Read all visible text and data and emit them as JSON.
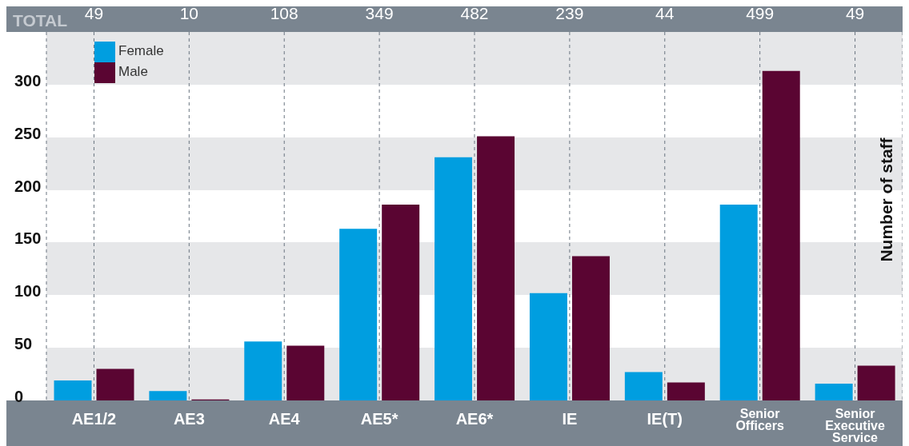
{
  "chart_data": {
    "type": "bar",
    "ylabel": "Number of staff",
    "categories": [
      "AE1/2",
      "AE3",
      "AE4",
      "AE5*",
      "AE6*",
      "IE",
      "IE(T)",
      "Senior Officers",
      "Senior Executive Service"
    ],
    "series": [
      {
        "name": "Female",
        "color": "#009ee0",
        "values": [
          19,
          9,
          56,
          163,
          231,
          102,
          27,
          186,
          16
        ]
      },
      {
        "name": "Male",
        "color": "#5a0532",
        "values": [
          30,
          1,
          52,
          186,
          251,
          137,
          17,
          313,
          33
        ]
      }
    ],
    "annotations": [
      "TOTAL",
      "49",
      "10",
      "108",
      "349",
      "482",
      "239",
      "44",
      "499",
      "49"
    ],
    "ylim": [
      0,
      350
    ],
    "yticks": [
      0,
      50,
      100,
      150,
      200,
      250,
      300
    ],
    "grid": true,
    "legend": "top left"
  }
}
